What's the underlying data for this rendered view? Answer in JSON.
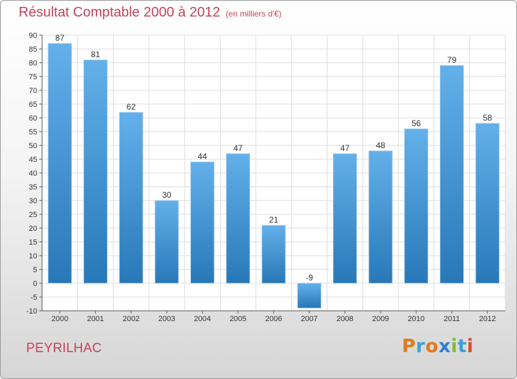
{
  "title": "Résultat Comptable 2000 à 2012",
  "subtitle": "(en milliers d'€)",
  "commune": "PEYRILHAC",
  "logo": {
    "text": "Proxiti",
    "letter_colors": [
      "#e07a1a",
      "#3aa0d8",
      "#e07a1a",
      "#2e7fd0",
      "#7cbf2a",
      "#3aa0d8",
      "#e04a2a"
    ]
  },
  "colors": {
    "title": "#c8415a",
    "bar_light": "#63b0ea",
    "bar_dark": "#2878b8"
  },
  "chart_data": {
    "type": "bar",
    "categories": [
      "2000",
      "2001",
      "2002",
      "2003",
      "2004",
      "2005",
      "2006",
      "2007",
      "2008",
      "2009",
      "2010",
      "2011",
      "2012"
    ],
    "values": [
      87,
      81,
      62,
      30,
      44,
      47,
      21,
      -9,
      47,
      48,
      56,
      79,
      58
    ],
    "value_labels": [
      "87",
      "81",
      "62",
      "30",
      "44",
      "47",
      "21",
      "-9",
      "47",
      "48",
      "56",
      "79",
      "58"
    ],
    "ylim": [
      -10,
      90
    ],
    "yticks": [
      "-10",
      "-5",
      "0",
      "5",
      "10",
      "15",
      "20",
      "25",
      "30",
      "35",
      "40",
      "45",
      "50",
      "55",
      "60",
      "65",
      "70",
      "75",
      "80",
      "85",
      "90"
    ],
    "grid": true
  }
}
